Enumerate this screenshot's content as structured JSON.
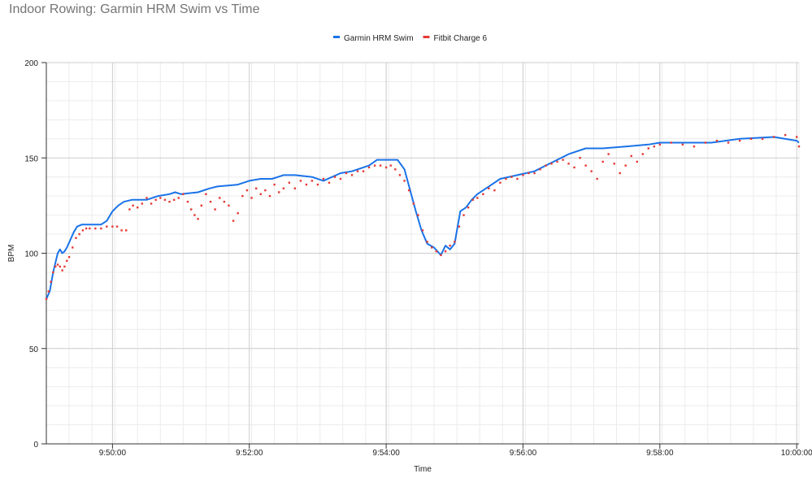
{
  "chart_data": {
    "type": "line",
    "title": "Indoor Rowing: Garmin HRM Swim vs Time",
    "xlabel": "Time",
    "ylabel": "BPM",
    "ylim": [
      0,
      200
    ],
    "y_major_ticks": [
      0,
      50,
      100,
      150,
      200
    ],
    "y_minor_step": 10,
    "xlim": [
      "9:49:02",
      "10:00:02"
    ],
    "x_ticks": [
      "9:50:00",
      "9:52:00",
      "9:54:00",
      "9:56:00",
      "9:58:00",
      "10:00:00"
    ],
    "x_minor_step_seconds": 20,
    "grid": true,
    "legend_position": "top",
    "series": [
      {
        "name": "Garmin HRM Swim",
        "style": "line",
        "color": "#1a73e8",
        "points": [
          [
            "9:49:02",
            76
          ],
          [
            "9:49:05",
            80
          ],
          [
            "9:49:08",
            90
          ],
          [
            "9:49:10",
            95
          ],
          [
            "9:49:12",
            100
          ],
          [
            "9:49:14",
            102
          ],
          [
            "9:49:16",
            100
          ],
          [
            "9:49:18",
            101
          ],
          [
            "9:49:20",
            103
          ],
          [
            "9:49:23",
            107
          ],
          [
            "9:49:26",
            111
          ],
          [
            "9:49:29",
            114
          ],
          [
            "9:49:33",
            115
          ],
          [
            "9:49:50",
            115
          ],
          [
            "9:49:55",
            117
          ],
          [
            "9:50:00",
            122
          ],
          [
            "9:50:05",
            125
          ],
          [
            "9:50:10",
            127
          ],
          [
            "9:50:17",
            128
          ],
          [
            "9:50:30",
            128
          ],
          [
            "9:50:40",
            130
          ],
          [
            "9:50:50",
            131
          ],
          [
            "9:50:55",
            132
          ],
          [
            "9:51:00",
            131
          ],
          [
            "9:51:15",
            132
          ],
          [
            "9:51:25",
            134
          ],
          [
            "9:51:32",
            135
          ],
          [
            "9:51:50",
            136
          ],
          [
            "9:52:00",
            138
          ],
          [
            "9:52:10",
            139
          ],
          [
            "9:52:20",
            139
          ],
          [
            "9:52:30",
            141
          ],
          [
            "9:52:40",
            141
          ],
          [
            "9:52:55",
            140
          ],
          [
            "9:53:05",
            138
          ],
          [
            "9:53:20",
            142
          ],
          [
            "9:53:30",
            143
          ],
          [
            "9:53:45",
            146
          ],
          [
            "9:53:52",
            149
          ],
          [
            "9:54:10",
            149
          ],
          [
            "9:54:16",
            144
          ],
          [
            "9:54:21",
            133
          ],
          [
            "9:54:26",
            122
          ],
          [
            "9:54:31",
            112
          ],
          [
            "9:54:36",
            105
          ],
          [
            "9:54:42",
            103
          ],
          [
            "9:54:48",
            99
          ],
          [
            "9:54:52",
            104
          ],
          [
            "9:54:56",
            102
          ],
          [
            "9:55:00",
            105
          ],
          [
            "9:55:05",
            122
          ],
          [
            "9:55:10",
            124
          ],
          [
            "9:55:15",
            128
          ],
          [
            "9:55:20",
            131
          ],
          [
            "9:55:30",
            135
          ],
          [
            "9:55:40",
            139
          ],
          [
            "9:55:55",
            141
          ],
          [
            "9:56:10",
            143
          ],
          [
            "9:56:20",
            146
          ],
          [
            "9:56:40",
            152
          ],
          [
            "9:56:55",
            155
          ],
          [
            "9:57:10",
            155
          ],
          [
            "9:57:30",
            156
          ],
          [
            "9:57:50",
            157
          ],
          [
            "9:58:00",
            158
          ],
          [
            "9:58:15",
            158
          ],
          [
            "9:58:45",
            158
          ],
          [
            "9:59:10",
            160
          ],
          [
            "9:59:40",
            161
          ],
          [
            "10:00:00",
            159
          ],
          [
            "10:00:02",
            158
          ]
        ]
      },
      {
        "name": "Fitbit Charge 6",
        "style": "dots",
        "color": "#e53935",
        "points": [
          [
            "9:49:02",
            76
          ],
          [
            "9:49:04",
            80
          ],
          [
            "9:49:06",
            85
          ],
          [
            "9:49:08",
            90
          ],
          [
            "9:49:10",
            93
          ],
          [
            "9:49:12",
            94
          ],
          [
            "9:49:14",
            93
          ],
          [
            "9:49:16",
            91
          ],
          [
            "9:49:18",
            93
          ],
          [
            "9:49:20",
            96
          ],
          [
            "9:49:22",
            98
          ],
          [
            "9:49:25",
            103
          ],
          [
            "9:49:28",
            108
          ],
          [
            "9:49:31",
            110
          ],
          [
            "9:49:34",
            112
          ],
          [
            "9:49:37",
            113
          ],
          [
            "9:49:40",
            113
          ],
          [
            "9:49:45",
            113
          ],
          [
            "9:49:50",
            113
          ],
          [
            "9:49:55",
            114
          ],
          [
            "9:50:00",
            114
          ],
          [
            "9:50:04",
            114
          ],
          [
            "9:50:08",
            112
          ],
          [
            "9:50:12",
            112
          ],
          [
            "9:50:15",
            123
          ],
          [
            "9:50:18",
            125
          ],
          [
            "9:50:22",
            124
          ],
          [
            "9:50:26",
            126
          ],
          [
            "9:50:30",
            129
          ],
          [
            "9:50:34",
            126
          ],
          [
            "9:50:38",
            128
          ],
          [
            "9:50:42",
            129
          ],
          [
            "9:50:46",
            128
          ],
          [
            "9:50:50",
            127
          ],
          [
            "9:50:54",
            128
          ],
          [
            "9:50:58",
            129
          ],
          [
            "9:51:02",
            131
          ],
          [
            "9:51:06",
            127
          ],
          [
            "9:51:09",
            123
          ],
          [
            "9:51:12",
            120
          ],
          [
            "9:51:15",
            118
          ],
          [
            "9:51:18",
            125
          ],
          [
            "9:51:22",
            131
          ],
          [
            "9:51:26",
            127
          ],
          [
            "9:51:30",
            123
          ],
          [
            "9:51:34",
            129
          ],
          [
            "9:51:38",
            127
          ],
          [
            "9:51:42",
            125
          ],
          [
            "9:51:46",
            117
          ],
          [
            "9:51:50",
            121
          ],
          [
            "9:51:54",
            130
          ],
          [
            "9:51:58",
            133
          ],
          [
            "9:52:02",
            129
          ],
          [
            "9:52:06",
            134
          ],
          [
            "9:52:10",
            131
          ],
          [
            "9:52:14",
            133
          ],
          [
            "9:52:18",
            130
          ],
          [
            "9:52:22",
            136
          ],
          [
            "9:52:26",
            132
          ],
          [
            "9:52:30",
            134
          ],
          [
            "9:52:35",
            137
          ],
          [
            "9:52:40",
            134
          ],
          [
            "9:52:45",
            138
          ],
          [
            "9:52:50",
            136
          ],
          [
            "9:52:55",
            138
          ],
          [
            "9:53:00",
            136
          ],
          [
            "9:53:05",
            139
          ],
          [
            "9:53:10",
            137
          ],
          [
            "9:53:15",
            140
          ],
          [
            "9:53:20",
            139
          ],
          [
            "9:53:25",
            142
          ],
          [
            "9:53:30",
            141
          ],
          [
            "9:53:35",
            143
          ],
          [
            "9:53:40",
            143
          ],
          [
            "9:53:45",
            145
          ],
          [
            "9:53:50",
            146
          ],
          [
            "9:53:55",
            146
          ],
          [
            "9:54:00",
            145
          ],
          [
            "9:54:04",
            146
          ],
          [
            "9:54:08",
            144
          ],
          [
            "9:54:12",
            141
          ],
          [
            "9:54:16",
            138
          ],
          [
            "9:54:20",
            133
          ],
          [
            "9:54:24",
            126
          ],
          [
            "9:54:28",
            120
          ],
          [
            "9:54:32",
            112
          ],
          [
            "9:54:36",
            106
          ],
          [
            "9:54:40",
            103
          ],
          [
            "9:54:44",
            101
          ],
          [
            "9:54:48",
            99
          ],
          [
            "9:54:52",
            101
          ],
          [
            "9:54:56",
            104
          ],
          [
            "9:55:00",
            106
          ],
          [
            "9:55:04",
            114
          ],
          [
            "9:55:08",
            120
          ],
          [
            "9:55:12",
            124
          ],
          [
            "9:55:16",
            128
          ],
          [
            "9:55:20",
            129
          ],
          [
            "9:55:25",
            131
          ],
          [
            "9:55:30",
            134
          ],
          [
            "9:55:35",
            133
          ],
          [
            "9:55:40",
            137
          ],
          [
            "9:55:45",
            139
          ],
          [
            "9:55:50",
            140
          ],
          [
            "9:55:55",
            139
          ],
          [
            "9:56:00",
            141
          ],
          [
            "9:56:05",
            142
          ],
          [
            "9:56:10",
            142
          ],
          [
            "9:56:15",
            144
          ],
          [
            "9:56:20",
            146
          ],
          [
            "9:56:25",
            147
          ],
          [
            "9:56:30",
            148
          ],
          [
            "9:56:35",
            149
          ],
          [
            "9:56:40",
            147
          ],
          [
            "9:56:45",
            145
          ],
          [
            "9:56:50",
            150
          ],
          [
            "9:56:55",
            146
          ],
          [
            "9:57:00",
            143
          ],
          [
            "9:57:05",
            139
          ],
          [
            "9:57:10",
            148
          ],
          [
            "9:57:15",
            152
          ],
          [
            "9:57:20",
            147
          ],
          [
            "9:57:25",
            142
          ],
          [
            "9:57:30",
            146
          ],
          [
            "9:57:35",
            151
          ],
          [
            "9:57:40",
            148
          ],
          [
            "9:57:45",
            152
          ],
          [
            "9:57:50",
            155
          ],
          [
            "9:57:55",
            156
          ],
          [
            "9:58:00",
            157
          ],
          [
            "9:58:10",
            158
          ],
          [
            "9:58:20",
            157
          ],
          [
            "9:58:30",
            156
          ],
          [
            "9:58:40",
            158
          ],
          [
            "9:58:50",
            159
          ],
          [
            "9:59:00",
            158
          ],
          [
            "9:59:10",
            159
          ],
          [
            "9:59:20",
            160
          ],
          [
            "9:59:30",
            160
          ],
          [
            "9:59:40",
            161
          ],
          [
            "9:59:50",
            162
          ],
          [
            "10:00:00",
            161
          ],
          [
            "10:00:02",
            156
          ]
        ]
      }
    ]
  }
}
